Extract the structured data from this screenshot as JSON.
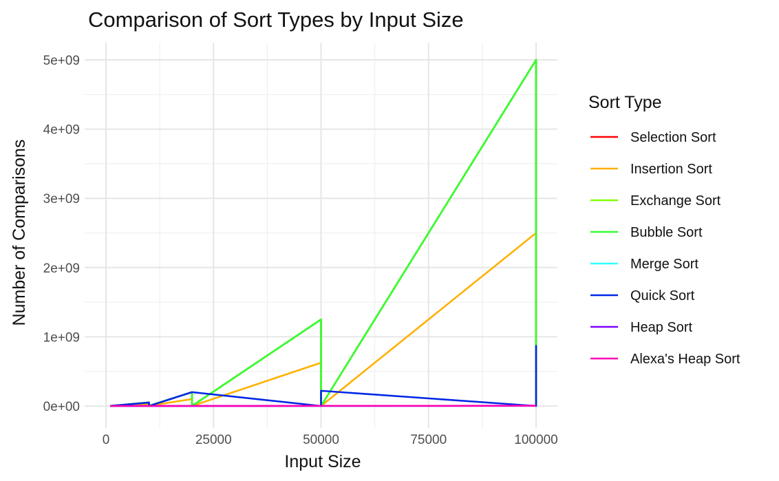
{
  "chart_data": {
    "type": "line",
    "title": "Comparison of Sort Types by Input Size",
    "xlabel": "Input Size",
    "ylabel": "Number of Comparisons",
    "xlim": [
      1000,
      100000
    ],
    "ylim": [
      0,
      5000000000
    ],
    "x_ticks": [
      0,
      25000,
      50000,
      75000,
      100000
    ],
    "x_tick_labels": [
      "0",
      "25000",
      "50000",
      "75000",
      "100000"
    ],
    "y_ticks": [
      0,
      1000000000,
      2000000000,
      3000000000,
      4000000000,
      5000000000
    ],
    "y_tick_labels": [
      "0e+00",
      "1e+09",
      "2e+09",
      "3e+09",
      "4e+09",
      "5e+09"
    ],
    "grid": true,
    "legend": {
      "title": "Sort Type",
      "position": "right"
    },
    "series": [
      {
        "name": "Selection Sort",
        "color": "#ff0000",
        "points": [
          [
            1000,
            500000
          ],
          [
            10000,
            50000000
          ],
          [
            10000,
            3000000
          ],
          [
            20000,
            200000000
          ],
          [
            20000,
            0
          ],
          [
            50000,
            1250000000
          ],
          [
            50000,
            0
          ],
          [
            100000,
            5000000000
          ],
          [
            100000,
            0
          ]
        ]
      },
      {
        "name": "Insertion Sort",
        "color": "#ffb000",
        "points": [
          [
            1000,
            250000
          ],
          [
            10000,
            25000000
          ],
          [
            10000,
            3000000
          ],
          [
            20000,
            100000000
          ],
          [
            20000,
            0
          ],
          [
            50000,
            625000000
          ],
          [
            50000,
            0
          ],
          [
            100000,
            2500000000
          ],
          [
            100000,
            0
          ]
        ]
      },
      {
        "name": "Exchange Sort",
        "color": "#80ff00",
        "points": [
          [
            1000,
            500000
          ],
          [
            10000,
            50000000
          ],
          [
            10000,
            3000000
          ],
          [
            20000,
            200000000
          ],
          [
            20000,
            0
          ],
          [
            50000,
            1250000000
          ],
          [
            50000,
            0
          ],
          [
            100000,
            5000000000
          ],
          [
            100000,
            0
          ]
        ]
      },
      {
        "name": "Bubble Sort",
        "color": "#33ff33",
        "points": [
          [
            1000,
            500000
          ],
          [
            10000,
            50000000
          ],
          [
            10000,
            3000000
          ],
          [
            20000,
            200000000
          ],
          [
            20000,
            0
          ],
          [
            50000,
            1250000000
          ],
          [
            50000,
            0
          ],
          [
            100000,
            5000000000
          ],
          [
            100000,
            0
          ]
        ]
      },
      {
        "name": "Merge Sort",
        "color": "#33ffff",
        "points": [
          [
            1000,
            9000
          ],
          [
            10000,
            120000
          ],
          [
            20000,
            260000
          ],
          [
            50000,
            720000
          ],
          [
            100000,
            1540000
          ]
        ]
      },
      {
        "name": "Quick Sort",
        "color": "#0026e6",
        "points": [
          [
            1000,
            500000
          ],
          [
            10000,
            50000000
          ],
          [
            10000,
            10000
          ],
          [
            20000,
            200000000
          ],
          [
            50000,
            0
          ],
          [
            50000,
            220000000
          ],
          [
            100000,
            0
          ],
          [
            100000,
            880000000
          ]
        ]
      },
      {
        "name": "Heap Sort",
        "color": "#7f00ff",
        "points": [
          [
            1000,
            17000
          ],
          [
            10000,
            235000
          ],
          [
            20000,
            510000
          ],
          [
            50000,
            1400000
          ],
          [
            100000,
            3000000
          ]
        ]
      },
      {
        "name": "Alexa's Heap Sort",
        "color": "#ff00b3",
        "points": [
          [
            1000,
            17000
          ],
          [
            10000,
            235000
          ],
          [
            20000,
            510000
          ],
          [
            50000,
            1400000
          ],
          [
            100000,
            3000000
          ]
        ]
      }
    ]
  }
}
